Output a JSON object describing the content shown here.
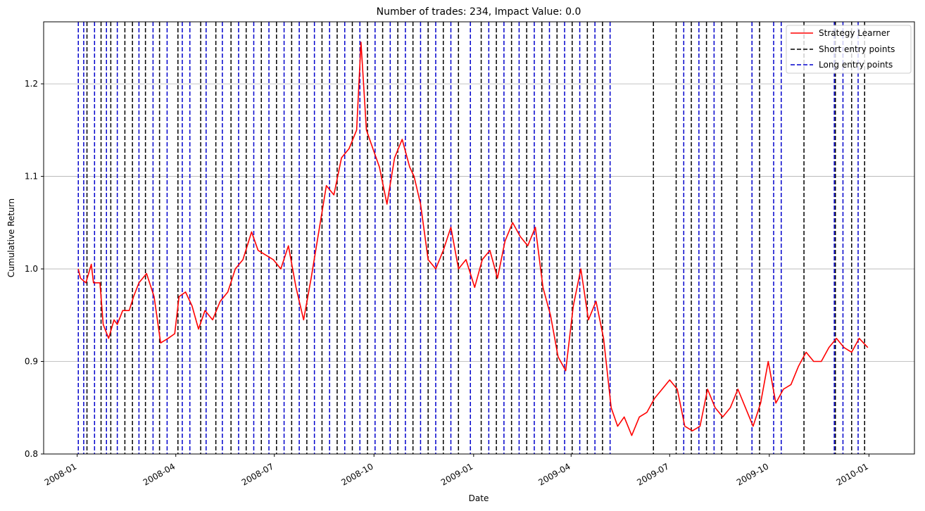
{
  "chart_data": {
    "type": "line",
    "title": "Number of trades: 234, Impact Value: 0.0",
    "xlabel": "Date",
    "ylabel": "Cumulative Return",
    "x_range": [
      "2007-12-01",
      "2010-02-12"
    ],
    "ylim": [
      0.8,
      1.267
    ],
    "y_ticks": [
      0.8,
      0.9,
      1.0,
      1.1,
      1.2
    ],
    "y_tick_labels": [
      "0.8",
      "0.9",
      "1.0",
      "1.1",
      "1.2"
    ],
    "x_ticks": [
      "2008-01-01",
      "2008-04-01",
      "2008-07-01",
      "2008-10-01",
      "2009-01-01",
      "2009-04-01",
      "2009-07-01",
      "2009-10-01",
      "2010-01-01"
    ],
    "x_tick_labels": [
      "2008-01",
      "2008-04",
      "2008-07",
      "2008-10",
      "2009-01",
      "2009-04",
      "2009-07",
      "2009-10",
      "2010-01"
    ],
    "grid": "horizontal",
    "legend_position": "top-right",
    "colors": {
      "strategy": "#ff0000",
      "short": "#000000",
      "long": "#0000cc",
      "grid": "#b0b0b0"
    },
    "series": [
      {
        "name": "Strategy Learner",
        "x": [
          "2008-01-02",
          "2008-01-04",
          "2008-01-09",
          "2008-01-14",
          "2008-01-16",
          "2008-01-22",
          "2008-01-25",
          "2008-01-30",
          "2008-02-04",
          "2008-02-07",
          "2008-02-12",
          "2008-02-18",
          "2008-02-22",
          "2008-02-27",
          "2008-03-05",
          "2008-03-12",
          "2008-03-18",
          "2008-03-25",
          "2008-03-31",
          "2008-04-04",
          "2008-04-10",
          "2008-04-16",
          "2008-04-22",
          "2008-04-28",
          "2008-05-05",
          "2008-05-12",
          "2008-05-19",
          "2008-05-26",
          "2008-06-02",
          "2008-06-10",
          "2008-06-16",
          "2008-06-23",
          "2008-06-30",
          "2008-07-07",
          "2008-07-14",
          "2008-07-21",
          "2008-07-28",
          "2008-08-04",
          "2008-08-11",
          "2008-08-18",
          "2008-08-25",
          "2008-09-01",
          "2008-09-08",
          "2008-09-15",
          "2008-09-19",
          "2008-09-24",
          "2008-09-30",
          "2008-10-06",
          "2008-10-13",
          "2008-10-20",
          "2008-10-27",
          "2008-11-03",
          "2008-11-07",
          "2008-11-13",
          "2008-11-20",
          "2008-11-27",
          "2008-12-04",
          "2008-12-11",
          "2008-12-18",
          "2008-12-25",
          "2009-01-02",
          "2009-01-09",
          "2009-01-16",
          "2009-01-23",
          "2009-01-30",
          "2009-02-06",
          "2009-02-13",
          "2009-02-20",
          "2009-02-27",
          "2009-03-06",
          "2009-03-13",
          "2009-03-20",
          "2009-03-27",
          "2009-04-03",
          "2009-04-10",
          "2009-04-17",
          "2009-04-24",
          "2009-05-01",
          "2009-05-08",
          "2009-05-14",
          "2009-05-20",
          "2009-05-27",
          "2009-06-03",
          "2009-06-10",
          "2009-06-17",
          "2009-06-24",
          "2009-07-01",
          "2009-07-08",
          "2009-07-15",
          "2009-07-22",
          "2009-07-29",
          "2009-08-05",
          "2009-08-12",
          "2009-08-19",
          "2009-08-26",
          "2009-09-02",
          "2009-09-09",
          "2009-09-16",
          "2009-09-23",
          "2009-09-30",
          "2009-10-07",
          "2009-10-14",
          "2009-10-21",
          "2009-10-28",
          "2009-11-04",
          "2009-11-11",
          "2009-11-18",
          "2009-11-25",
          "2009-12-02",
          "2009-12-09",
          "2009-12-16",
          "2009-12-23",
          "2009-12-31"
        ],
        "y": [
          1.0,
          0.99,
          0.985,
          1.005,
          0.985,
          0.985,
          0.94,
          0.925,
          0.945,
          0.94,
          0.955,
          0.955,
          0.97,
          0.985,
          0.995,
          0.97,
          0.92,
          0.925,
          0.93,
          0.97,
          0.975,
          0.96,
          0.935,
          0.955,
          0.945,
          0.965,
          0.975,
          1.0,
          1.01,
          1.04,
          1.02,
          1.015,
          1.01,
          1.0,
          1.025,
          0.98,
          0.945,
          0.99,
          1.04,
          1.09,
          1.08,
          1.12,
          1.13,
          1.15,
          1.245,
          1.15,
          1.13,
          1.11,
          1.07,
          1.12,
          1.14,
          1.11,
          1.1,
          1.07,
          1.01,
          1.0,
          1.02,
          1.045,
          1.0,
          1.01,
          0.98,
          1.01,
          1.02,
          0.99,
          1.03,
          1.05,
          1.035,
          1.025,
          1.045,
          0.98,
          0.95,
          0.905,
          0.89,
          0.96,
          1.0,
          0.945,
          0.965,
          0.925,
          0.85,
          0.83,
          0.84,
          0.82,
          0.84,
          0.845,
          0.86,
          0.87,
          0.88,
          0.87,
          0.83,
          0.825,
          0.83,
          0.87,
          0.85,
          0.84,
          0.85,
          0.87,
          0.85,
          0.83,
          0.855,
          0.9,
          0.855,
          0.87,
          0.875,
          0.895,
          0.91,
          0.9,
          0.9,
          0.915,
          0.925,
          0.915,
          0.91,
          0.925,
          0.915
        ]
      },
      {
        "name": "Short entry points",
        "dates": [
          "2008-01-10",
          "2008-01-23",
          "2008-02-01",
          "2008-02-14",
          "2008-02-21",
          "2008-03-04",
          "2008-03-17",
          "2008-04-03",
          "2008-04-24",
          "2008-05-08",
          "2008-05-22",
          "2008-06-05",
          "2008-06-19",
          "2008-07-03",
          "2008-07-17",
          "2008-07-31",
          "2008-08-14",
          "2008-08-28",
          "2008-09-11",
          "2008-09-25",
          "2008-10-09",
          "2008-10-23",
          "2008-11-06",
          "2008-11-20",
          "2008-12-04",
          "2008-12-18",
          "2009-01-08",
          "2009-01-22",
          "2009-02-05",
          "2009-02-19",
          "2009-03-05",
          "2009-03-19",
          "2009-04-02",
          "2009-04-16",
          "2009-04-30",
          "2009-06-16",
          "2009-07-07",
          "2009-07-21",
          "2009-08-04",
          "2009-08-18",
          "2009-09-01",
          "2009-09-22",
          "2009-11-02",
          "2009-12-01",
          "2009-12-16",
          "2009-12-28"
        ]
      },
      {
        "name": "Long entry points",
        "dates": [
          "2008-01-02",
          "2008-01-07",
          "2008-01-17",
          "2008-01-28",
          "2008-02-07",
          "2008-02-27",
          "2008-03-11",
          "2008-03-24",
          "2008-04-07",
          "2008-04-14",
          "2008-04-29",
          "2008-05-14",
          "2008-05-29",
          "2008-06-12",
          "2008-06-26",
          "2008-07-10",
          "2008-07-24",
          "2008-08-07",
          "2008-08-21",
          "2008-09-04",
          "2008-09-18",
          "2008-10-02",
          "2008-10-16",
          "2008-10-30",
          "2008-11-13",
          "2008-11-27",
          "2008-12-11",
          "2008-12-29",
          "2009-01-15",
          "2009-01-29",
          "2009-02-12",
          "2009-02-26",
          "2009-03-12",
          "2009-03-26",
          "2009-04-09",
          "2009-04-23",
          "2009-05-07",
          "2009-07-14",
          "2009-07-28",
          "2009-08-11",
          "2009-09-15",
          "2009-10-05",
          "2009-10-12",
          "2009-11-30",
          "2009-12-08",
          "2009-12-22"
        ]
      }
    ],
    "legend": {
      "strategy_label": "Strategy Learner",
      "short_label": "Short entry points",
      "long_label": "Long entry points"
    }
  }
}
